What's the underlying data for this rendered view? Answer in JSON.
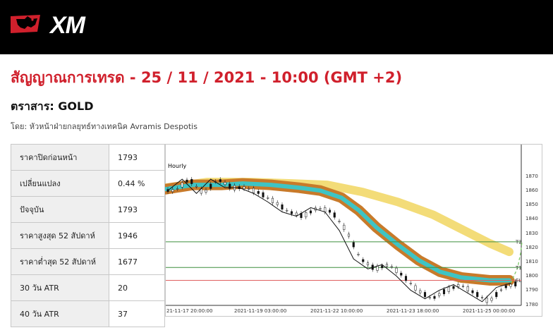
{
  "brand": {
    "logo_text": "XM"
  },
  "heading": {
    "title": "สัญญาณการเทรด - 25 / 11 / 2021 - 10:00 (GMT +2)"
  },
  "instrument": {
    "label": "ตราสาร: GOLD"
  },
  "author": {
    "byline": "โดย: หัวหน้าฝ่ายกลยุทธ์ทางเทคนิค Avramis Despotis"
  },
  "stats": [
    {
      "label": "ราคาปิดก่อนหน้า",
      "value": "1793"
    },
    {
      "label": "เปลี่ยนแปลง",
      "value": "0.44 %"
    },
    {
      "label": "ปัจจุบัน",
      "value": "1793"
    },
    {
      "label": "ราคาสูงสุด 52 สัปดาห์",
      "value": "1946"
    },
    {
      "label": "ราคาต่ำสุด 52 สัปดาห์",
      "value": "1677"
    },
    {
      "label": "30 วัน ATR",
      "value": "20"
    },
    {
      "label": "40 วัน ATR",
      "value": "37"
    }
  ],
  "chart": {
    "timeframe": "Hourly",
    "y_ticks": [
      "1870",
      "1860",
      "1850",
      "1840",
      "1830",
      "1820",
      "1810",
      "1800",
      "1790",
      "1780"
    ],
    "x_ticks": [
      "21-11-17 20:00:00",
      "2021-11-19 03:00:00",
      "2021-11-22 10:00:00",
      "2021-11-23 18:00:00",
      "2021-11-25 00:00:00"
    ],
    "levels": {
      "t2_label": "T2",
      "t1_label": "T1",
      "el_label": "EL",
      "t2": 1824,
      "t1": 1806,
      "el": 1797
    },
    "colors": {
      "green_line": "#3f8f3f",
      "red_line": "#e06060",
      "band_outer": "#c87a2a",
      "band_inner": "#3ec4c4",
      "slow_band": "#f3dc78"
    },
    "price_path": [
      1860,
      1868,
      1858,
      1868,
      1862,
      1862,
      1858,
      1852,
      1845,
      1842,
      1848,
      1845,
      1832,
      1812,
      1805,
      1808,
      1800,
      1790,
      1784,
      1790,
      1794,
      1788,
      1782,
      1792,
      1795
    ]
  }
}
